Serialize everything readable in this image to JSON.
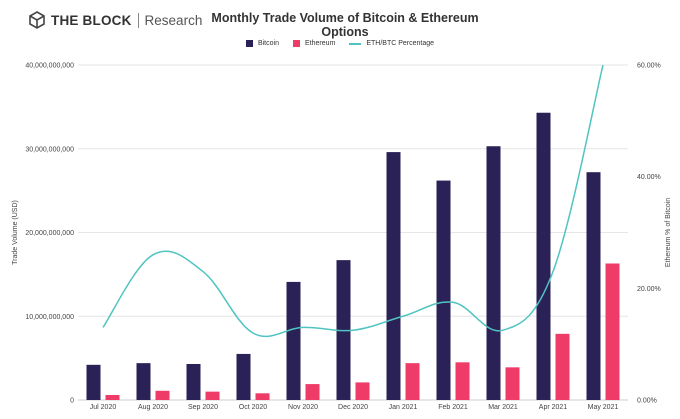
{
  "brand": {
    "name_bold": "THE BLOCK",
    "name_light": "Research",
    "logo_icon": "block-cube-logo-icon"
  },
  "colors": {
    "bitcoin": "#2a2157",
    "ethereum": "#ef3b68",
    "ratio": "#4fc4c0",
    "grid": "#e6e6e6"
  },
  "chart_data": {
    "type": "bar",
    "title": "Monthly Trade Volume of Bitcoin & Ethereum Options",
    "categories": [
      "Jul 2020",
      "Aug 2020",
      "Sep 2020",
      "Oct 2020",
      "Nov 2020",
      "Dec 2020",
      "Jan 2021",
      "Feb 2021",
      "Mar 2021",
      "Apr 2021",
      "May 2021"
    ],
    "series": [
      {
        "name": "Bitcoin",
        "kind": "bar",
        "axis": "left",
        "values": [
          4200000000,
          4400000000,
          4300000000,
          5500000000,
          14100000000,
          16700000000,
          29600000000,
          26200000000,
          30300000000,
          34300000000,
          27200000000
        ]
      },
      {
        "name": "Ethereum",
        "kind": "bar",
        "axis": "left",
        "values": [
          600000000,
          1100000000,
          1000000000,
          800000000,
          1900000000,
          2100000000,
          4400000000,
          4500000000,
          3900000000,
          7900000000,
          16300000000
        ]
      },
      {
        "name": "ETH/BTC Percentage",
        "kind": "line",
        "axis": "right",
        "values": [
          13.0,
          26.0,
          23.0,
          12.0,
          13.0,
          12.5,
          15.0,
          17.5,
          12.5,
          23.0,
          60.0
        ]
      }
    ],
    "ylabel": "Trade Volume (USD)",
    "ylabel_right": "Ethereum % of Bitcoin",
    "ylim": [
      0,
      40000000000
    ],
    "ylim_right": [
      0,
      60
    ],
    "yticks": [
      {
        "value": 0,
        "label": "0"
      },
      {
        "value": 10000000000,
        "label": "10,000,000,000"
      },
      {
        "value": 20000000000,
        "label": "20,000,000,000"
      },
      {
        "value": 30000000000,
        "label": "30,000,000,000"
      },
      {
        "value": 40000000000,
        "label": "40,000,000,000"
      }
    ],
    "yticks_right": [
      {
        "value": 0,
        "label": "0.00%"
      },
      {
        "value": 20,
        "label": "20.00%"
      },
      {
        "value": 40,
        "label": "40.00%"
      },
      {
        "value": 60,
        "label": "60.00%"
      }
    ],
    "grid": true,
    "legend_position": "top-center"
  }
}
